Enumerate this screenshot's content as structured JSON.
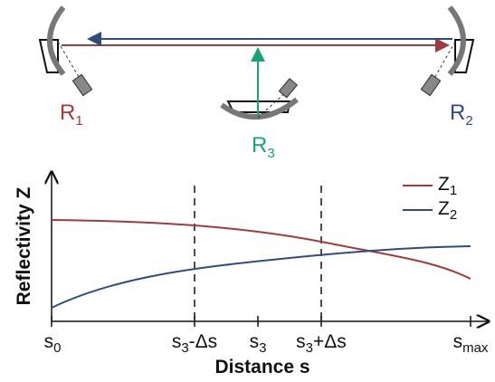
{
  "mirrors": [
    {
      "label": {
        "base": "R",
        "sub": "1"
      }
    },
    {
      "label": {
        "base": "R",
        "sub": "2"
      }
    },
    {
      "label": {
        "base": "R",
        "sub": "3"
      }
    }
  ],
  "plot": {
    "y_label": "Reflectivity Z",
    "x_label": "Distance s",
    "x_ticks": [
      {
        "base": "s",
        "sub": "0"
      },
      {
        "base": "s",
        "sub": "3",
        "after": "-Δs"
      },
      {
        "base": "s",
        "sub": "3"
      },
      {
        "base": "s",
        "sub": "3",
        "after": "+Δs"
      },
      {
        "base": "s",
        "sub": "max"
      }
    ],
    "legend": [
      {
        "base": "Z",
        "sub": "1"
      },
      {
        "base": "Z",
        "sub": "2"
      }
    ]
  }
}
